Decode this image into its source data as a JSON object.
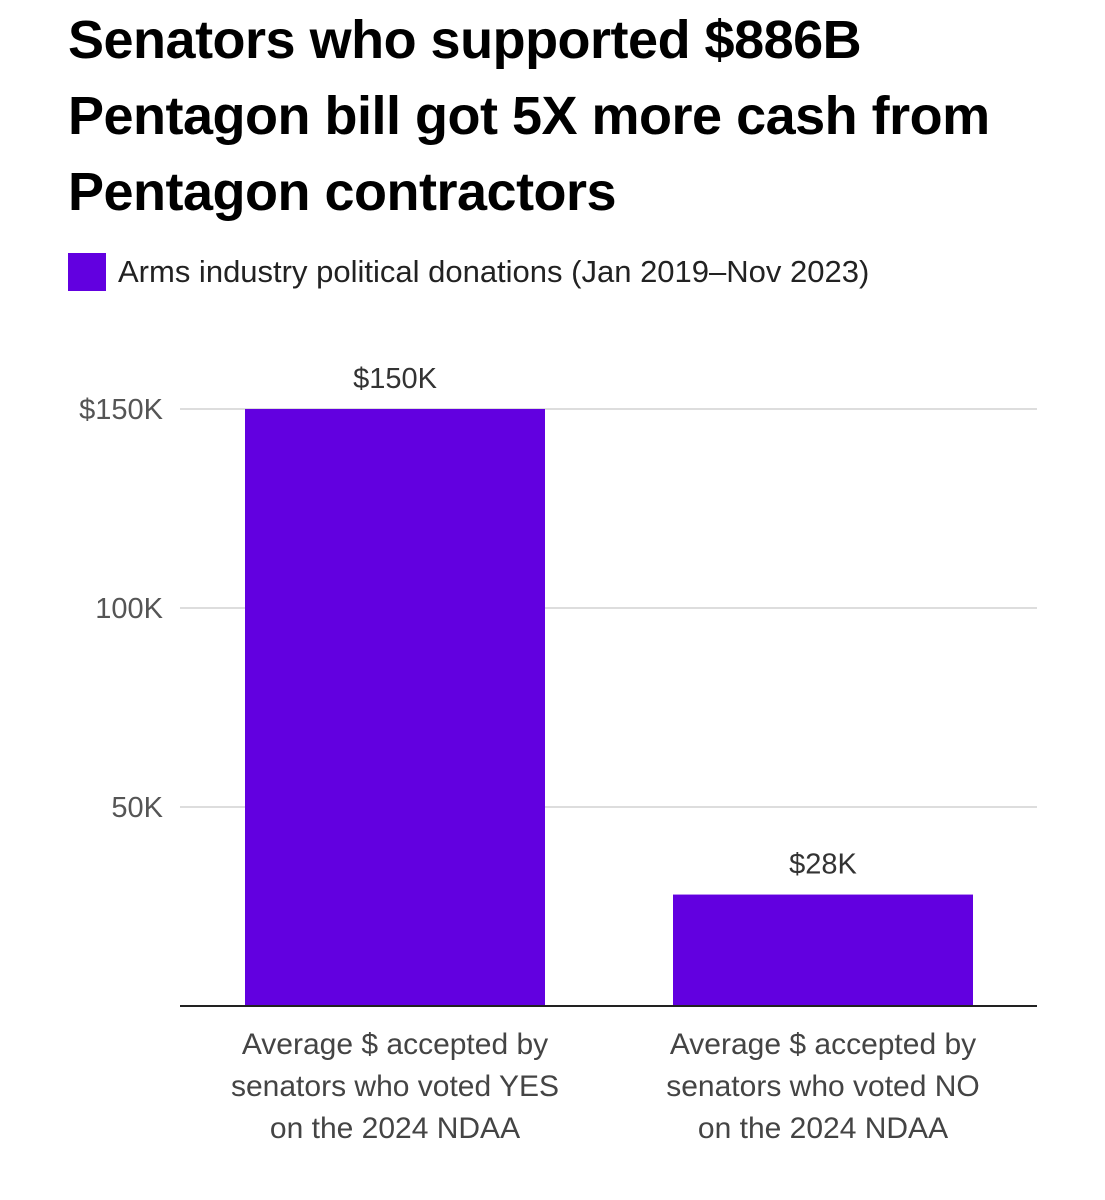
{
  "chart_data": {
    "type": "bar",
    "title": "Senators who supported $886B Pentagon bill got 5X more cash from Pentagon contractors",
    "series": [
      {
        "name": "Arms industry political donations (Jan 2019–Nov 2023)",
        "color": "#6200E0",
        "values": [
          150000,
          28000
        ]
      }
    ],
    "categories": [
      [
        "Average $ accepted by",
        "senators who voted YES",
        "on the 2024 NDAA"
      ],
      [
        "Average $ accepted by",
        "senators who voted NO",
        "on the 2024 NDAA"
      ]
    ],
    "data_labels": [
      "$150K",
      "$28K"
    ],
    "yticks": [
      {
        "value": 50000,
        "label": "50K"
      },
      {
        "value": 100000,
        "label": "100K"
      },
      {
        "value": 150000,
        "label": "$150K"
      }
    ],
    "ylim": [
      0,
      150000
    ],
    "grid": true,
    "legend_position": "top-left",
    "xlabel": "",
    "ylabel": ""
  }
}
